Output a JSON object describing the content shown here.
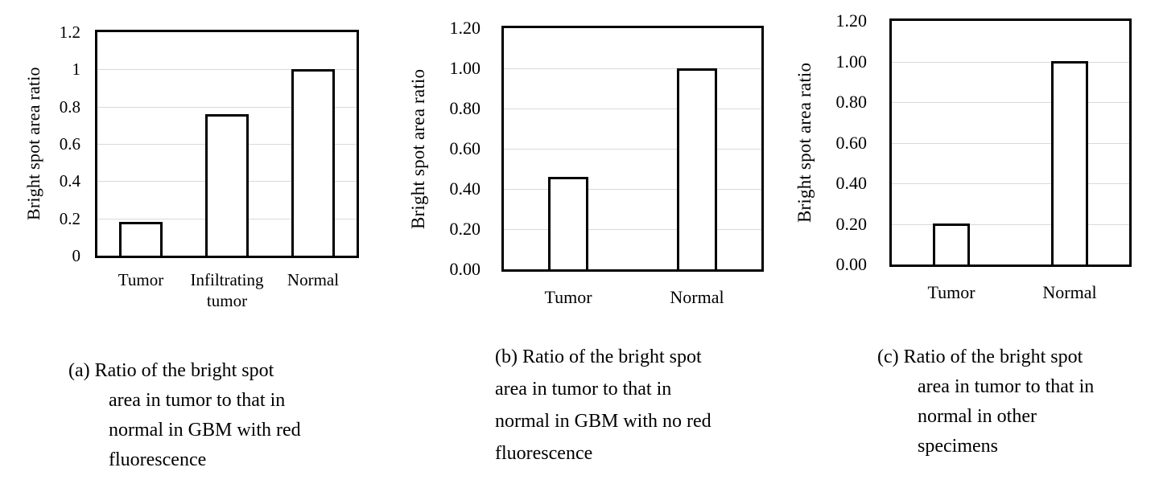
{
  "colors": {
    "background": "#ffffff",
    "axis_border": "#000000",
    "grid_line": "#d9d9d9",
    "bar_fill": "#ffffff",
    "bar_border": "#000000",
    "text": "#000000"
  },
  "chart_data": [
    {
      "type": "bar",
      "panel": "a",
      "title": "(a) Ratio of the bright spot area in tumor to that in normal in GBM with red fluorescence",
      "ylabel": "Bright spot area ratio",
      "xlabel": "",
      "categories": [
        "Tumor",
        "Infiltrating tumor",
        "Normal"
      ],
      "values": [
        0.18,
        0.76,
        1.0
      ],
      "ylim": [
        0,
        1.2
      ],
      "y_tick_labels": [
        "0",
        "0.2",
        "0.4",
        "0.6",
        "0.8",
        "1",
        "1.2"
      ],
      "grid": true,
      "legend": "none",
      "caption_lines": [
        "(a) Ratio of the bright spot",
        "area in tumor to that in",
        "normal in GBM with red",
        "fluorescence"
      ]
    },
    {
      "type": "bar",
      "panel": "b",
      "title": "(b) Ratio of the bright spot area in tumor to that in normal in GBM with no red fluorescence",
      "ylabel": "Bright spot area ratio",
      "xlabel": "",
      "categories": [
        "Tumor",
        "Normal"
      ],
      "values": [
        0.46,
        1.0
      ],
      "ylim": [
        0,
        1.2
      ],
      "y_tick_labels": [
        "0.00",
        "0.20",
        "0.40",
        "0.60",
        "0.80",
        "1.00",
        "1.20"
      ],
      "grid": true,
      "legend": "none",
      "caption_lines": [
        "(b) Ratio of the bright spot",
        "area in tumor to that in",
        "normal in GBM with no red",
        "fluorescence"
      ]
    },
    {
      "type": "bar",
      "panel": "c",
      "title": "(c) Ratio of the bright spot area in tumor to that in normal in other specimens",
      "ylabel": "Bright spot area ratio",
      "xlabel": "",
      "categories": [
        "Tumor",
        "Normal"
      ],
      "values": [
        0.2,
        1.0
      ],
      "ylim": [
        0,
        1.2
      ],
      "y_tick_labels": [
        "0.00",
        "0.20",
        "0.40",
        "0.60",
        "0.80",
        "1.00",
        "1.20"
      ],
      "grid": true,
      "legend": "none",
      "caption_lines": [
        "(c) Ratio of the bright spot",
        "area in tumor to that in",
        "normal in other",
        "specimens"
      ]
    }
  ]
}
